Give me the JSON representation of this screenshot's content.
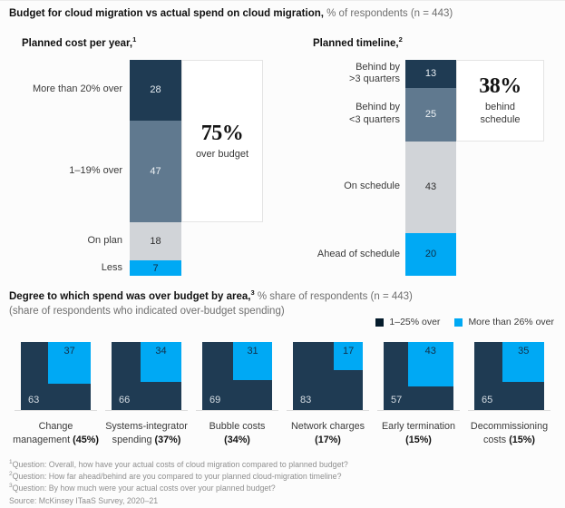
{
  "header": {
    "title_bold": "Budget for cloud migration vs actual spend on cloud migration,",
    "title_rest": " % of respondents (n = 443)"
  },
  "colors": {
    "navy": "#1f3b53",
    "slate": "#60798f",
    "light_gray": "#d1d4d8",
    "cyan": "#00a9f4",
    "legend_dark": "#051c2c"
  },
  "chart_data": [
    {
      "type": "bar",
      "orientation": "vertical-stacked",
      "title": "Planned cost per year,",
      "title_sup": "1",
      "categories": [
        "More than 20% over",
        "1–19% over",
        "On plan",
        "Less"
      ],
      "values": [
        28,
        47,
        18,
        7
      ],
      "segment_colors": [
        "navy",
        "slate",
        "light_gray",
        "cyan"
      ],
      "annotation": {
        "big": "75%",
        "caption": "over budget",
        "span_units": 75
      }
    },
    {
      "type": "bar",
      "orientation": "vertical-stacked",
      "title": "Planned timeline,",
      "title_sup": "2",
      "categories": [
        "Behind by\n>3 quarters",
        "Behind by\n<3 quarters",
        "On schedule",
        "Ahead of schedule"
      ],
      "values": [
        13,
        25,
        43,
        20
      ],
      "segment_colors": [
        "navy",
        "slate",
        "light_gray",
        "cyan"
      ],
      "annotation": {
        "big": "38%",
        "caption": "behind schedule",
        "span_units": 38
      }
    },
    {
      "type": "square-area",
      "title_bold": "Degree to which spend was over budget by area,",
      "title_sup": "3",
      "title_rest": " % share of respondents (n = 443)",
      "subtitle": "(share of respondents who indicated over-budget spending)",
      "legend": [
        {
          "label": "1–25% over",
          "color": "legend_dark"
        },
        {
          "label": "More than 26% over",
          "color": "cyan"
        }
      ],
      "items": [
        {
          "dark_value": 63,
          "light_value": 37,
          "label_lines": [
            {
              "t": "Change"
            },
            {
              "t": "management ",
              "b": "(45%)"
            }
          ]
        },
        {
          "dark_value": 66,
          "light_value": 34,
          "label_lines": [
            {
              "t": "Systems-integrator"
            },
            {
              "t": "spending ",
              "b": "(37%)"
            }
          ]
        },
        {
          "dark_value": 69,
          "light_value": 31,
          "label_lines": [
            {
              "t": "Bubble costs"
            },
            {
              "t": "",
              "b": "(34%)"
            }
          ]
        },
        {
          "dark_value": 83,
          "light_value": 17,
          "label_lines": [
            {
              "t": "Network charges"
            },
            {
              "t": "",
              "b": "(17%)"
            }
          ]
        },
        {
          "dark_value": 57,
          "light_value": 43,
          "label_lines": [
            {
              "t": "Early termination"
            },
            {
              "t": "",
              "b": "(15%)"
            }
          ]
        },
        {
          "dark_value": 65,
          "light_value": 35,
          "label_lines": [
            {
              "t": "Decommissioning"
            },
            {
              "t": "costs ",
              "b": "(15%)"
            }
          ]
        }
      ]
    }
  ],
  "footnotes": [
    {
      "sup": "1",
      "text": "Question: Overall, how have your actual costs of cloud migration compared to planned budget?"
    },
    {
      "sup": "2",
      "text": "Question: How far ahead/behind are you compared to your planned cloud-migration timeline?"
    },
    {
      "sup": "3",
      "text": "Question: By how much were your actual costs over your planned budget?"
    },
    {
      "sup": "",
      "text": "Source: McKinsey ITaaS Survey, 2020–21"
    }
  ]
}
